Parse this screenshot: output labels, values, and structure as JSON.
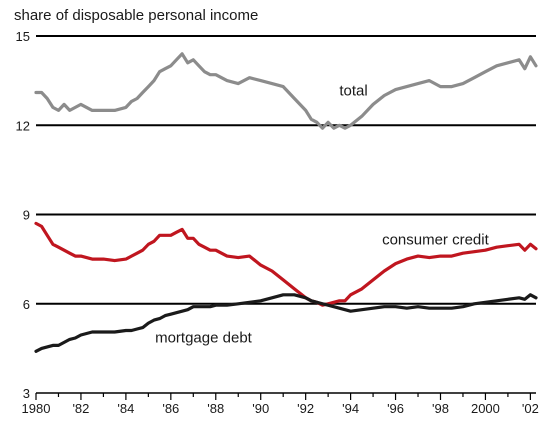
{
  "chart_data": {
    "type": "line",
    "title": "",
    "ylabel": "share of disposable personal income",
    "xlabel": "",
    "ylim": [
      3,
      15
    ],
    "xlim": [
      1980,
      2002.25
    ],
    "yticks": [
      3,
      6,
      9,
      12,
      15
    ],
    "ytick_labels": [
      "3",
      "6",
      "9",
      "12",
      "15"
    ],
    "xticks": [
      1980,
      1982,
      1984,
      1986,
      1988,
      1990,
      1992,
      1994,
      1996,
      1998,
      2000,
      2002
    ],
    "xtick_labels": [
      "1980",
      "'82",
      "'84",
      "'86",
      "'88",
      "'90",
      "'92",
      "'94",
      "'96",
      "'98",
      "2000",
      "'02"
    ],
    "grid": "horizontal",
    "series": [
      {
        "name": "total",
        "color": "#8c8c8c",
        "x": [
          1980,
          1980.25,
          1980.5,
          1980.75,
          1981,
          1981.25,
          1981.5,
          1981.75,
          1982,
          1982.5,
          1983,
          1983.5,
          1984,
          1984.25,
          1984.5,
          1984.75,
          1985,
          1985.25,
          1985.5,
          1985.75,
          1986,
          1986.25,
          1986.5,
          1986.75,
          1987,
          1987.25,
          1987.5,
          1987.75,
          1988,
          1988.5,
          1989,
          1989.5,
          1990,
          1990.5,
          1991,
          1991.5,
          1992,
          1992.25,
          1992.5,
          1992.75,
          1993,
          1993.25,
          1993.5,
          1993.75,
          1994,
          1994.5,
          1995,
          1995.5,
          1996,
          1996.5,
          1997,
          1997.5,
          1998,
          1998.5,
          1999,
          1999.5,
          2000,
          2000.5,
          2001,
          2001.5,
          2001.75,
          2002,
          2002.25
        ],
        "values": [
          13.1,
          13.1,
          12.9,
          12.6,
          12.5,
          12.7,
          12.5,
          12.6,
          12.7,
          12.5,
          12.5,
          12.5,
          12.6,
          12.8,
          12.9,
          13.1,
          13.3,
          13.5,
          13.8,
          13.9,
          14.0,
          14.2,
          14.4,
          14.1,
          14.2,
          14.0,
          13.8,
          13.7,
          13.7,
          13.5,
          13.4,
          13.6,
          13.5,
          13.4,
          13.3,
          12.9,
          12.5,
          12.2,
          12.1,
          11.9,
          12.1,
          11.9,
          12.0,
          11.9,
          12.0,
          12.3,
          12.7,
          13.0,
          13.2,
          13.3,
          13.4,
          13.5,
          13.3,
          13.3,
          13.4,
          13.6,
          13.8,
          14.0,
          14.1,
          14.2,
          13.9,
          14.3,
          14.0
        ]
      },
      {
        "name": "consumer credit",
        "color": "#c0161f",
        "x": [
          1980,
          1980.25,
          1980.5,
          1980.75,
          1981,
          1981.25,
          1981.5,
          1981.75,
          1982,
          1982.5,
          1983,
          1983.5,
          1984,
          1984.25,
          1984.5,
          1984.75,
          1985,
          1985.25,
          1985.5,
          1985.75,
          1986,
          1986.25,
          1986.5,
          1986.75,
          1987,
          1987.25,
          1987.5,
          1987.75,
          1988,
          1988.5,
          1989,
          1989.5,
          1990,
          1990.5,
          1991,
          1991.5,
          1992,
          1992.25,
          1992.5,
          1992.75,
          1993,
          1993.25,
          1993.5,
          1993.75,
          1994,
          1994.5,
          1995,
          1995.5,
          1996,
          1996.5,
          1997,
          1997.5,
          1998,
          1998.5,
          1999,
          1999.5,
          2000,
          2000.5,
          2001,
          2001.5,
          2001.75,
          2002,
          2002.25
        ],
        "values": [
          8.7,
          8.6,
          8.3,
          8.0,
          7.9,
          7.8,
          7.7,
          7.6,
          7.6,
          7.5,
          7.5,
          7.45,
          7.5,
          7.6,
          7.7,
          7.8,
          8.0,
          8.1,
          8.3,
          8.3,
          8.3,
          8.4,
          8.5,
          8.2,
          8.2,
          8.0,
          7.9,
          7.8,
          7.8,
          7.6,
          7.55,
          7.6,
          7.3,
          7.1,
          6.8,
          6.5,
          6.2,
          6.1,
          6.05,
          5.95,
          6.0,
          6.05,
          6.1,
          6.1,
          6.3,
          6.5,
          6.8,
          7.1,
          7.35,
          7.5,
          7.6,
          7.55,
          7.6,
          7.6,
          7.7,
          7.75,
          7.8,
          7.9,
          7.95,
          8.0,
          7.8,
          8.0,
          7.85
        ]
      },
      {
        "name": "mortgage debt",
        "color": "#1a1a1a",
        "x": [
          1980,
          1980.25,
          1980.5,
          1980.75,
          1981,
          1981.25,
          1981.5,
          1981.75,
          1982,
          1982.5,
          1983,
          1983.5,
          1984,
          1984.25,
          1984.5,
          1984.75,
          1985,
          1985.25,
          1985.5,
          1985.75,
          1986,
          1986.25,
          1986.5,
          1986.75,
          1987,
          1987.25,
          1987.5,
          1987.75,
          1988,
          1988.5,
          1989,
          1989.5,
          1990,
          1990.5,
          1991,
          1991.5,
          1992,
          1992.25,
          1992.5,
          1992.75,
          1993,
          1993.25,
          1993.5,
          1993.75,
          1994,
          1994.5,
          1995,
          1995.5,
          1996,
          1996.5,
          1997,
          1997.5,
          1998,
          1998.5,
          1999,
          1999.5,
          2000,
          2000.5,
          2001,
          2001.5,
          2001.75,
          2002,
          2002.25
        ],
        "values": [
          4.4,
          4.5,
          4.55,
          4.6,
          4.6,
          4.7,
          4.8,
          4.85,
          4.95,
          5.05,
          5.05,
          5.05,
          5.1,
          5.1,
          5.15,
          5.2,
          5.35,
          5.45,
          5.5,
          5.6,
          5.65,
          5.7,
          5.75,
          5.8,
          5.9,
          5.9,
          5.9,
          5.9,
          5.95,
          5.95,
          6.0,
          6.05,
          6.1,
          6.2,
          6.3,
          6.3,
          6.2,
          6.1,
          6.05,
          6.0,
          5.95,
          5.9,
          5.85,
          5.8,
          5.75,
          5.8,
          5.85,
          5.9,
          5.9,
          5.85,
          5.9,
          5.85,
          5.85,
          5.85,
          5.9,
          6.0,
          6.05,
          6.1,
          6.15,
          6.2,
          6.15,
          6.3,
          6.2
        ]
      }
    ],
    "annotations": [
      {
        "text": "total",
        "series": "total",
        "x": 1993.5,
        "y": 13.0
      },
      {
        "text": "consumer credit",
        "series": "consumer credit",
        "x": 1995.4,
        "y": 8.0
      },
      {
        "text": "mortgage debt",
        "series": "mortgage debt",
        "x": 1985.3,
        "y": 4.7
      }
    ]
  }
}
